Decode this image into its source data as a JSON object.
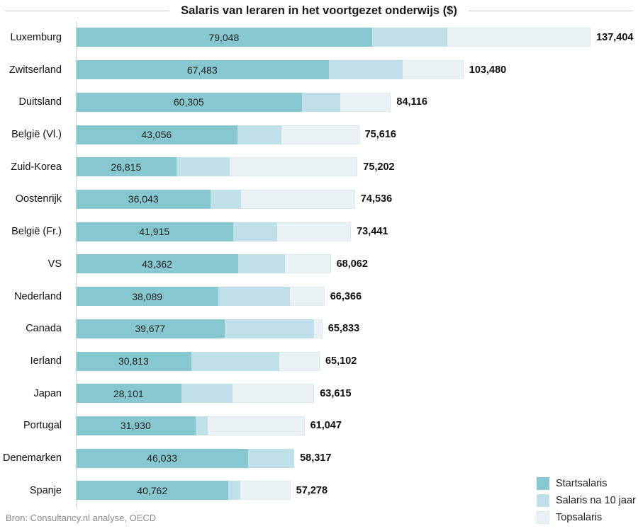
{
  "title": "Salaris van leraren in het voortgezet onderwijs ($)",
  "source": "Bron: Consultancy.nl analyse, OECD",
  "colors": {
    "start": "#87c7d0",
    "after10": "#bfe0e8",
    "top": "#e9f3f6",
    "top_border": "#dde9ec",
    "axis": "#cfcfcf",
    "title_text": "#1a1a1a",
    "source_text": "#8a8a8a"
  },
  "legend": {
    "items": [
      {
        "label": "Startsalaris",
        "color_key": "start"
      },
      {
        "label": "Salaris na 10 jaar",
        "color_key": "after10"
      },
      {
        "label": "Topsalaris",
        "color_key": "top"
      }
    ]
  },
  "chart_data": {
    "type": "bar",
    "orientation": "horizontal",
    "stacked": true,
    "title": "Salaris van leraren in het voortgezet onderwijs ($)",
    "xlabel": "",
    "ylabel": "",
    "xlim": [
      0,
      137404
    ],
    "grid": false,
    "legend_position": "bottom-right",
    "categories": [
      "Luxemburg",
      "Zwitserland",
      "Duitsland",
      "België (Vl.)",
      "Zuid-Korea",
      "Oostenrijk",
      "België (Fr.)",
      "VS",
      "Nederland",
      "Canada",
      "Ierland",
      "Japan",
      "Portugal",
      "Denemarken",
      "Spanje"
    ],
    "series": [
      {
        "name": "Startsalaris",
        "values": [
          79048,
          67483,
          60305,
          43056,
          26815,
          36043,
          41915,
          43362,
          38089,
          39677,
          30813,
          28101,
          31930,
          46033,
          40762
        ],
        "labeled_on_chart": true
      },
      {
        "name": "Salaris na 10 jaar",
        "values": [
          99200,
          87200,
          70600,
          54900,
          41000,
          44100,
          53700,
          55800,
          57200,
          63600,
          54300,
          41800,
          35200,
          58317,
          43900
        ],
        "labeled_on_chart": false,
        "note": "estimated from segment boundary pixels; not labeled in the original"
      },
      {
        "name": "Topsalaris",
        "values": [
          137404,
          103480,
          84116,
          75616,
          75202,
          74536,
          73441,
          68062,
          66366,
          65833,
          65102,
          63615,
          61047,
          58317,
          57278
        ],
        "labeled_on_chart": true
      }
    ]
  }
}
